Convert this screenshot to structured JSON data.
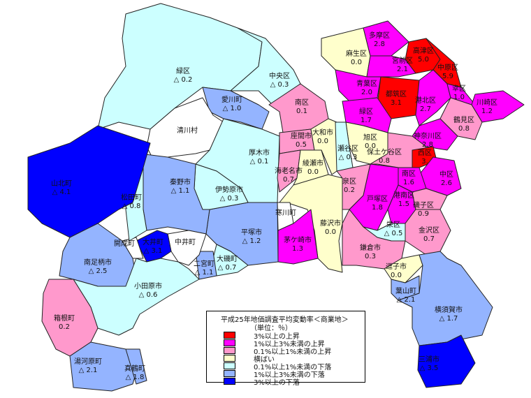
{
  "colors": {
    "up3": "#ff0000",
    "up1": "#ff00ff",
    "up01": "#ff99cc",
    "flat": "#ffffcc",
    "down01": "#ccffff",
    "down1": "#94b4ff",
    "down3": "#0000ff",
    "none": "#ffffff"
  },
  "legend": {
    "title": "平成25年地価調査平均変動率＜商業地＞",
    "unit": "（単位：％）",
    "items": [
      {
        "level": "up3",
        "label": "3%以上の上昇"
      },
      {
        "level": "up1",
        "label": "1%以上3%未満の上昇"
      },
      {
        "level": "up01",
        "label": "0.1%以上1%未満の上昇"
      },
      {
        "level": "flat",
        "label": "横ばい"
      },
      {
        "level": "down01",
        "label": "0.1%以上1%未満の下落"
      },
      {
        "level": "down1",
        "label": "1%以上3%未満の下落"
      },
      {
        "level": "down3",
        "label": "3%以上の下落"
      }
    ]
  },
  "regions": [
    {
      "name": "緑区",
      "value": "△ 0.2",
      "level": "down01"
    },
    {
      "name": "中央区",
      "value": "△ 0.3",
      "level": "down01"
    },
    {
      "name": "南区",
      "value": "0.1",
      "level": "up01"
    },
    {
      "name": "愛川町",
      "value": "△ 1.0",
      "level": "down1"
    },
    {
      "name": "清川村",
      "value": "",
      "level": "none"
    },
    {
      "name": "厚木市",
      "value": "△ 0.1",
      "level": "down01"
    },
    {
      "name": "座間市",
      "value": "0.5",
      "level": "up01"
    },
    {
      "name": "海老名市",
      "value": "0.7",
      "level": "up01"
    },
    {
      "name": "大和市",
      "value": "0.0",
      "level": "flat"
    },
    {
      "name": "綾瀬市",
      "value": "0.0",
      "level": "flat"
    },
    {
      "name": "藤沢市",
      "value": "0.0",
      "level": "flat"
    },
    {
      "name": "寒川町",
      "value": "",
      "level": "none"
    },
    {
      "name": "茅ケ崎市",
      "value": "1.3",
      "level": "up1"
    },
    {
      "name": "平塚市",
      "value": "△ 1.2",
      "level": "down1"
    },
    {
      "name": "伊勢原市",
      "value": "△ 0.3",
      "level": "down01"
    },
    {
      "name": "秦野市",
      "value": "△ 1.1",
      "level": "down1"
    },
    {
      "name": "大磯町",
      "value": "△ 0.7",
      "level": "down01"
    },
    {
      "name": "二宮町",
      "value": "△ 1.1",
      "level": "down1"
    },
    {
      "name": "中井町",
      "value": "",
      "level": "none"
    },
    {
      "name": "大井町",
      "value": "△ 3.1",
      "level": "down3"
    },
    {
      "name": "開成町",
      "value": "",
      "level": "none"
    },
    {
      "name": "松田町",
      "value": "△ 0.8",
      "level": "down01"
    },
    {
      "name": "山北町",
      "value": "△ 4.1",
      "level": "down3"
    },
    {
      "name": "南足柄市",
      "value": "△ 2.5",
      "level": "down1"
    },
    {
      "name": "小田原市",
      "value": "△ 0.6",
      "level": "down01"
    },
    {
      "name": "箱根町",
      "value": "0.2",
      "level": "up01"
    },
    {
      "name": "湯河原町",
      "value": "△ 2.1",
      "level": "down1"
    },
    {
      "name": "真鶴町",
      "value": "△ 1.8",
      "level": "down1"
    },
    {
      "name": "麻生区",
      "value": "0.0",
      "level": "flat"
    },
    {
      "name": "多摩区",
      "value": "2.8",
      "level": "up1"
    },
    {
      "name": "高津区",
      "value": "5.0",
      "level": "up3"
    },
    {
      "name": "中原区",
      "value": "5.9",
      "level": "up3"
    },
    {
      "name": "宮前区",
      "value": "2.1",
      "level": "up1"
    },
    {
      "name": "青葉区",
      "value": "2.0",
      "level": "up1"
    },
    {
      "name": "都筑区",
      "value": "3.1",
      "level": "up3"
    },
    {
      "name": "港北区",
      "value": "2.7",
      "level": "up1"
    },
    {
      "name": "幸区",
      "value": "1.0",
      "level": "up1"
    },
    {
      "name": "川崎区",
      "value": "1.2",
      "level": "up1"
    },
    {
      "name": "鶴見区",
      "value": "0.8",
      "level": "up01"
    },
    {
      "name": "緑区",
      "value": "1.7",
      "level": "up1"
    },
    {
      "name": "神奈川区",
      "value": "2.8",
      "level": "up1"
    },
    {
      "name": "旭区",
      "value": "0.0",
      "level": "flat"
    },
    {
      "name": "瀬谷区",
      "value": "△ 0.3",
      "level": "down01"
    },
    {
      "name": "保土ケ谷区",
      "value": "0.8",
      "level": "up01"
    },
    {
      "name": "西区",
      "value": "3.",
      "level": "up3"
    },
    {
      "name": "中区",
      "value": "2.6",
      "level": "up1"
    },
    {
      "name": "南区",
      "value": "1.6",
      "level": "up1"
    },
    {
      "name": "泉区",
      "value": "0.2",
      "level": "up01"
    },
    {
      "name": "戸塚区",
      "value": "1.8",
      "level": "up1"
    },
    {
      "name": "港南区",
      "value": "1.5",
      "level": "up1"
    },
    {
      "name": "磯子区",
      "value": "0.9",
      "level": "up01"
    },
    {
      "name": "栄区",
      "value": "△ 0.5",
      "level": "down01"
    },
    {
      "name": "金沢区",
      "value": "0.7",
      "level": "up01"
    },
    {
      "name": "鎌倉市",
      "value": "0.3",
      "level": "up01"
    },
    {
      "name": "逗子市",
      "value": "0.0",
      "level": "flat"
    },
    {
      "name": "葉山町",
      "value": "△ 2.1",
      "level": "down1"
    },
    {
      "name": "横須賀市",
      "value": "△ 1.7",
      "level": "down1"
    },
    {
      "name": "三浦市",
      "value": "△ 3.5",
      "level": "down3"
    }
  ]
}
